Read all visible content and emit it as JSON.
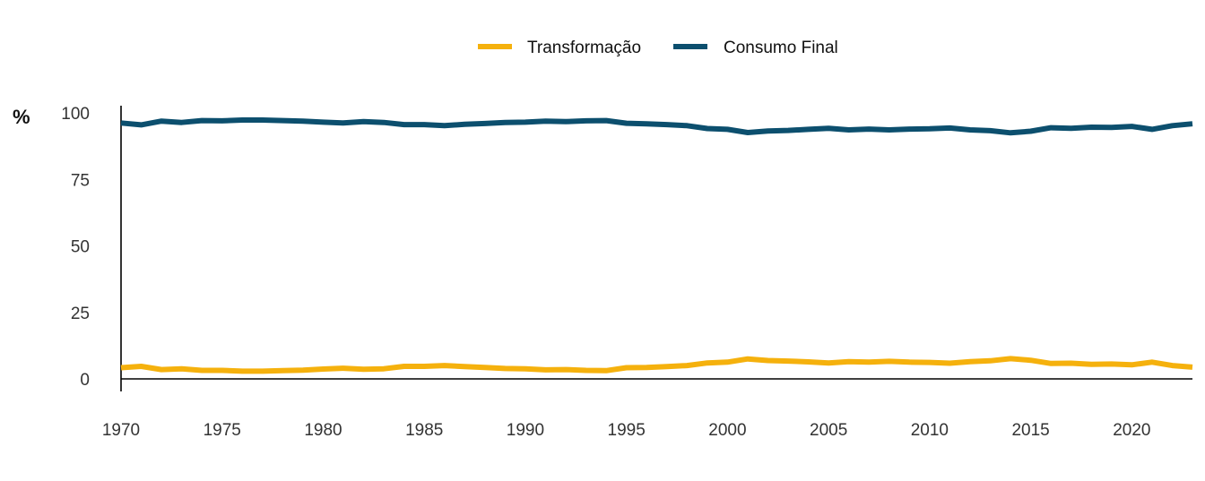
{
  "chart_data": {
    "type": "line",
    "ylabel": "%",
    "x": [
      1970,
      1971,
      1972,
      1973,
      1974,
      1975,
      1976,
      1977,
      1978,
      1979,
      1980,
      1981,
      1982,
      1983,
      1984,
      1985,
      1986,
      1987,
      1988,
      1989,
      1990,
      1991,
      1992,
      1993,
      1994,
      1995,
      1996,
      1997,
      1998,
      1999,
      2000,
      2001,
      2002,
      2003,
      2004,
      2005,
      2006,
      2007,
      2008,
      2009,
      2010,
      2011,
      2012,
      2013,
      2014,
      2015,
      2016,
      2017,
      2018,
      2019,
      2020,
      2021,
      2022,
      2023
    ],
    "xlim": [
      1970,
      2023
    ],
    "xticks": [
      "1970",
      "1975",
      "1980",
      "1985",
      "1990",
      "1995",
      "2000",
      "2005",
      "2010",
      "2015",
      "2020"
    ],
    "ylim": [
      -5,
      102
    ],
    "yticks": [
      "0",
      "25",
      "50",
      "75",
      "100"
    ],
    "legend_position": "top-center",
    "series": [
      {
        "name": "Transformação",
        "color": "#f5b10d",
        "values": [
          4.2,
          4.7,
          3.5,
          3.8,
          3.2,
          3.2,
          2.9,
          2.9,
          3.1,
          3.3,
          3.7,
          4.0,
          3.6,
          3.8,
          4.7,
          4.7,
          5.0,
          4.6,
          4.3,
          3.9,
          3.8,
          3.4,
          3.5,
          3.2,
          3.1,
          4.2,
          4.3,
          4.6,
          5.0,
          6.0,
          6.3,
          7.5,
          6.9,
          6.7,
          6.4,
          6.0,
          6.5,
          6.3,
          6.6,
          6.3,
          6.2,
          5.9,
          6.5,
          6.8,
          7.6,
          7.0,
          5.8,
          5.9,
          5.5,
          5.6,
          5.3,
          6.3,
          5.0,
          4.4
        ]
      },
      {
        "name": "Consumo Final",
        "color": "#0c4f6e",
        "values": [
          96.2,
          95.5,
          96.9,
          96.4,
          97.1,
          97.0,
          97.3,
          97.3,
          97.1,
          96.9,
          96.5,
          96.2,
          96.7,
          96.4,
          95.6,
          95.6,
          95.2,
          95.7,
          96.0,
          96.4,
          96.5,
          96.9,
          96.7,
          97.0,
          97.1,
          96.1,
          95.9,
          95.6,
          95.2,
          94.1,
          93.8,
          92.6,
          93.2,
          93.4,
          93.8,
          94.2,
          93.6,
          93.9,
          93.6,
          93.9,
          94.0,
          94.3,
          93.6,
          93.3,
          92.5,
          93.1,
          94.4,
          94.2,
          94.6,
          94.5,
          94.9,
          93.8,
          95.2,
          95.9
        ]
      }
    ]
  }
}
